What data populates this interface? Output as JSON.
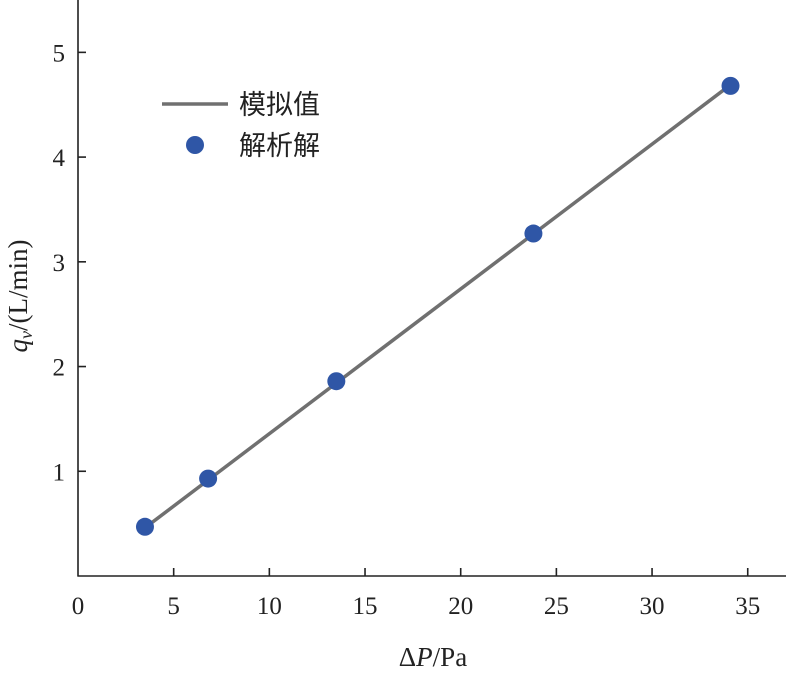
{
  "chart_data": {
    "type": "line",
    "xlabel": {
      "delta": "Δ",
      "var": "P",
      "unit": "/Pa"
    },
    "ylabel": {
      "var": "q",
      "sub": "v",
      "unit": "/(L/min)"
    },
    "xlim": [
      0,
      37
    ],
    "ylim": [
      0,
      5.5
    ],
    "xticks": [
      0,
      5,
      10,
      15,
      20,
      25,
      30,
      35
    ],
    "yticks": [
      1,
      2,
      3,
      4,
      5
    ],
    "grid": false,
    "legend_position": "top-left",
    "series": [
      {
        "name": "模拟值",
        "kind": "line",
        "color": "#707070",
        "x": [
          3.5,
          34.1
        ],
        "y": [
          0.46,
          4.69
        ]
      },
      {
        "name": "解析解",
        "kind": "scatter",
        "color": "#2f56a6",
        "x": [
          3.5,
          6.8,
          13.5,
          23.8,
          34.1
        ],
        "y": [
          0.47,
          0.93,
          1.86,
          3.27,
          4.68
        ]
      }
    ]
  }
}
